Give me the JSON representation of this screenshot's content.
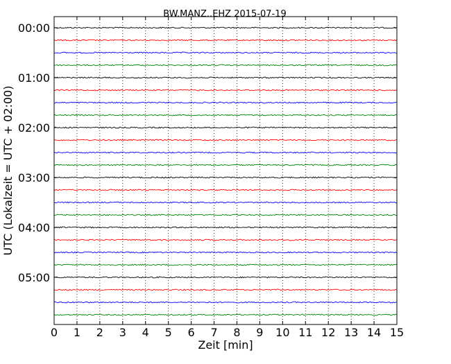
{
  "chart_data": {
    "type": "line",
    "title": "BW.MANZ..EHZ 2015-07-19",
    "xlabel": "Zeit  [min]",
    "ylabel": "UTC (Lokalzeit = UTC + 02:00)",
    "xlim": [
      0,
      15
    ],
    "x_ticks": [
      "0",
      "1",
      "2",
      "3",
      "4",
      "5",
      "6",
      "7",
      "8",
      "9",
      "10",
      "11",
      "12",
      "13",
      "14",
      "15"
    ],
    "y_tick_labels": [
      "00:00",
      "01:00",
      "02:00",
      "03:00",
      "04:00",
      "05:00"
    ],
    "y_tick_hours": [
      0,
      1,
      2,
      3,
      4,
      5
    ],
    "trace_interval_min": 15,
    "trace_count": 24,
    "trace_colors": [
      "#000000",
      "#ff0000",
      "#0000ff",
      "#008000"
    ],
    "grid": "vertical-dotted"
  }
}
